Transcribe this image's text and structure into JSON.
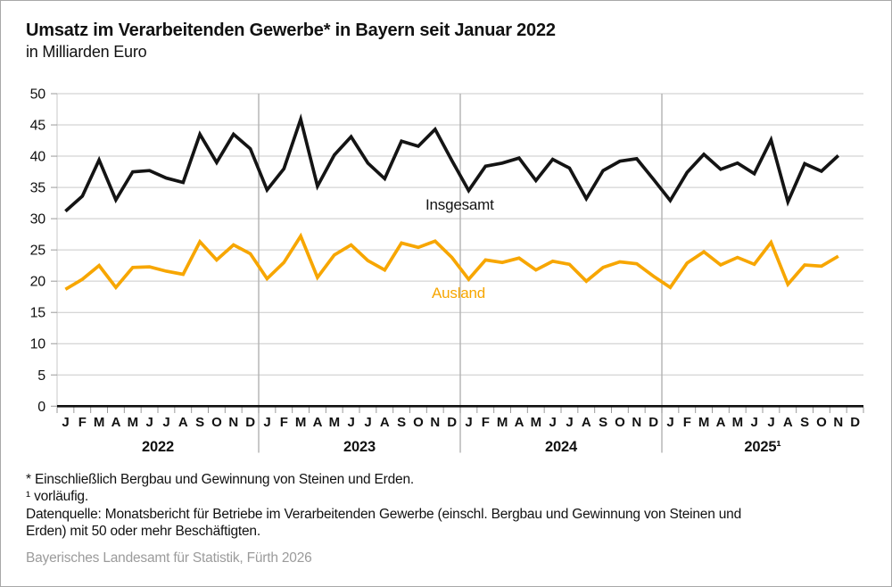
{
  "header": {
    "title": "Umsatz im Verarbeitenden Gewerbe* in Bayern seit Januar 2022",
    "subtitle": "in Milliarden Euro"
  },
  "chart_data": {
    "type": "line",
    "title": "Umsatz im Verarbeitenden Gewerbe* in Bayern seit Januar 2022",
    "subtitle": "in Milliarden Euro",
    "ylabel": "Milliarden Euro",
    "ylim": [
      0,
      50
    ],
    "yticks": [
      0,
      5,
      10,
      15,
      20,
      25,
      30,
      35,
      40,
      45,
      50
    ],
    "grid": true,
    "legend_position": "inline-labels",
    "month_labels": [
      "J",
      "F",
      "M",
      "A",
      "M",
      "J",
      "J",
      "A",
      "S",
      "O",
      "N",
      "D"
    ],
    "years": [
      {
        "label": "2022"
      },
      {
        "label": "2023"
      },
      {
        "label": "2024"
      },
      {
        "label": "2025¹"
      }
    ],
    "x_range_note": "Januar 2022 bis November 2025",
    "series": [
      {
        "name": "Insgesamt",
        "color": "#141414",
        "values": [
          31.2,
          33.6,
          39.4,
          33.0,
          37.5,
          37.7,
          36.5,
          35.8,
          43.5,
          39.0,
          43.5,
          41.2,
          34.6,
          38.0,
          45.9,
          35.2,
          40.2,
          43.1,
          38.9,
          36.4,
          42.4,
          41.6,
          44.3,
          39.3,
          34.5,
          38.4,
          38.9,
          39.7,
          36.1,
          39.5,
          38.1,
          33.2,
          37.7,
          39.2,
          39.6,
          36.3,
          32.9,
          37.4,
          40.3,
          37.9,
          38.9,
          37.2,
          42.6,
          32.7,
          38.8,
          37.6,
          40.1
        ]
      },
      {
        "name": "Ausland",
        "color": "#f7a600",
        "values": [
          18.7,
          20.3,
          22.5,
          19.0,
          22.2,
          22.3,
          21.6,
          21.1,
          26.3,
          23.4,
          25.8,
          24.4,
          20.4,
          23.0,
          27.2,
          20.6,
          24.2,
          25.8,
          23.3,
          21.8,
          26.1,
          25.4,
          26.4,
          23.8,
          20.3,
          23.4,
          23.0,
          23.7,
          21.8,
          23.2,
          22.7,
          20.0,
          22.2,
          23.1,
          22.8,
          20.8,
          19.0,
          22.9,
          24.7,
          22.6,
          23.8,
          22.7,
          26.2,
          19.5,
          22.6,
          22.4,
          24.0
        ]
      }
    ],
    "colors": {
      "gridline": "#c9c9c9",
      "year_separator": "#b2b2b2",
      "tick": "#9a9a9a",
      "axis": "#111111"
    }
  },
  "footnotes": {
    "line1": "* Einschließlich Bergbau und Gewinnung von Steinen und Erden.",
    "line2": "¹ vorläufig.",
    "source_line1": "Datenquelle: Monatsbericht für Betriebe im Verarbeitenden Gewerbe (einschl. Bergbau und Gewinnung von Steinen und",
    "source_line2": "Erden) mit 50 oder mehr Beschäftigten."
  },
  "credit": "Bayerisches Landesamt für Statistik, Fürth 2026"
}
